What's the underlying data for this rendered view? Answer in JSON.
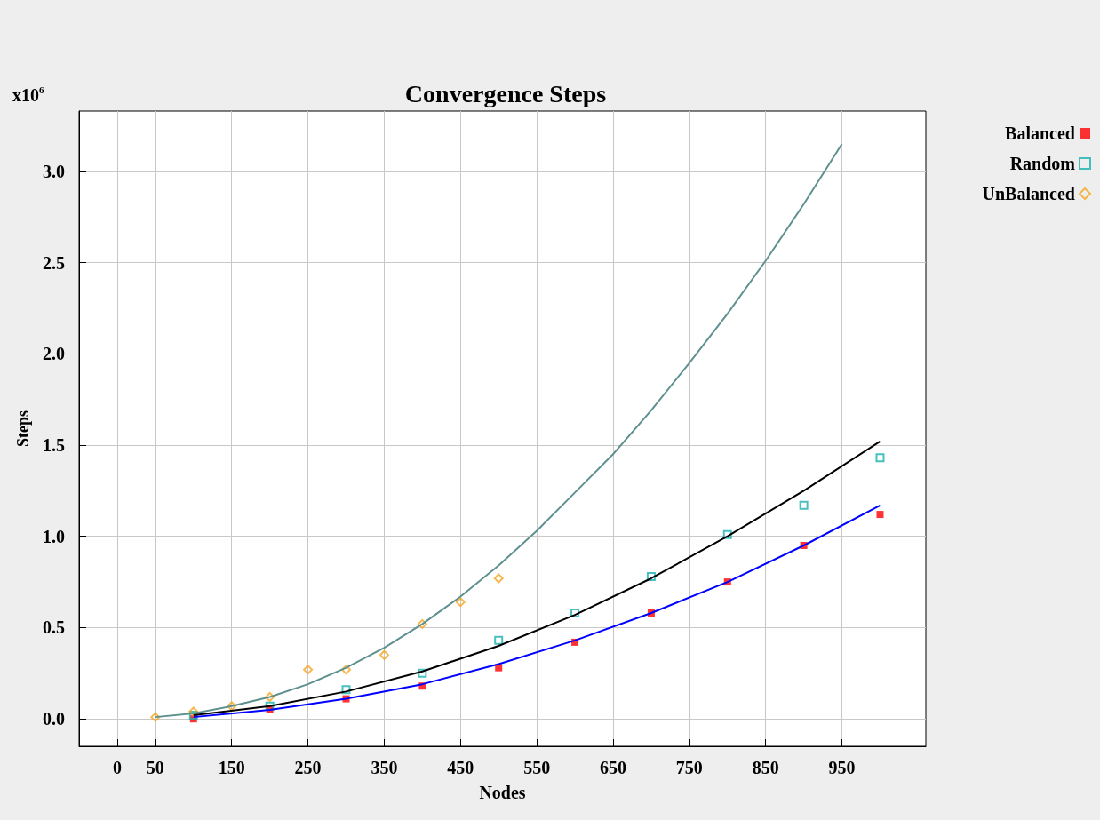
{
  "chart_data": {
    "type": "scatter",
    "title": "Convergence Steps",
    "xlabel": "Nodes",
    "ylabel": "Steps",
    "annotations": [
      "x10$^{6}$"
    ],
    "xlim": [
      -50,
      1060
    ],
    "xticks": [
      0,
      50,
      150,
      250,
      350,
      450,
      550,
      650,
      750,
      850,
      950
    ],
    "ylim": [
      -0.15,
      3.33
    ],
    "yticks": [
      {
        "value": 0,
        "label": "0.0"
      },
      0.5,
      {
        "value": 1,
        "label": "1.0"
      },
      1.5,
      {
        "value": 2,
        "label": "2.0"
      },
      2.5,
      {
        "value": 3,
        "label": "3.0"
      }
    ],
    "grid": true,
    "legend": "top right",
    "series": [
      {
        "name": "Balanced",
        "marker": "square",
        "color": "#ff0000",
        "x": [
          100,
          200,
          300,
          400,
          500,
          600,
          700,
          800,
          900,
          1000
        ],
        "values": [
          0.0,
          0.05,
          0.11,
          0.18,
          0.28,
          0.42,
          0.58,
          0.75,
          0.95,
          1.12
        ]
      },
      {
        "name": "Random",
        "marker": "square",
        "color": "#1ab0b0",
        "x": [
          100,
          200,
          300,
          400,
          500,
          600,
          700,
          800,
          900,
          1000
        ],
        "values": [
          0.02,
          0.07,
          0.16,
          0.25,
          0.43,
          0.58,
          0.78,
          1.01,
          1.17,
          1.43
        ]
      },
      {
        "name": "UnBalanced",
        "marker": "diamond",
        "color": "#f5a623",
        "x": [
          50,
          100,
          150,
          200,
          250,
          300,
          350,
          400,
          450,
          500
        ],
        "values": [
          0.01,
          0.04,
          0.07,
          0.12,
          0.27,
          0.27,
          0.35,
          0.52,
          0.64,
          0.77
        ]
      },
      {
        "type": "line",
        "marker": "none",
        "color": "#5f9090",
        "x": [
          50,
          100,
          150,
          200,
          250,
          300,
          350,
          400,
          450,
          500,
          550,
          600,
          650,
          700,
          750,
          800,
          850,
          900,
          950
        ],
        "values": [
          0.01,
          0.03,
          0.07,
          0.12,
          0.19,
          0.28,
          0.39,
          0.52,
          0.67,
          0.84,
          1.03,
          1.24,
          1.45,
          1.69,
          1.95,
          2.22,
          2.51,
          2.82,
          3.15
        ]
      },
      {
        "type": "line",
        "marker": "none",
        "color": "#000000",
        "x": [
          100,
          200,
          300,
          400,
          500,
          600,
          700,
          800,
          900,
          1000
        ],
        "values": [
          0.02,
          0.07,
          0.15,
          0.26,
          0.4,
          0.57,
          0.77,
          1.0,
          1.25,
          1.52
        ]
      },
      {
        "type": "line",
        "marker": "none",
        "color": "#0000ff",
        "x": [
          100,
          200,
          300,
          400,
          500,
          600,
          700,
          800,
          900,
          1000
        ],
        "values": [
          0.01,
          0.05,
          0.11,
          0.19,
          0.3,
          0.43,
          0.58,
          0.75,
          0.95,
          1.17
        ]
      }
    ]
  }
}
